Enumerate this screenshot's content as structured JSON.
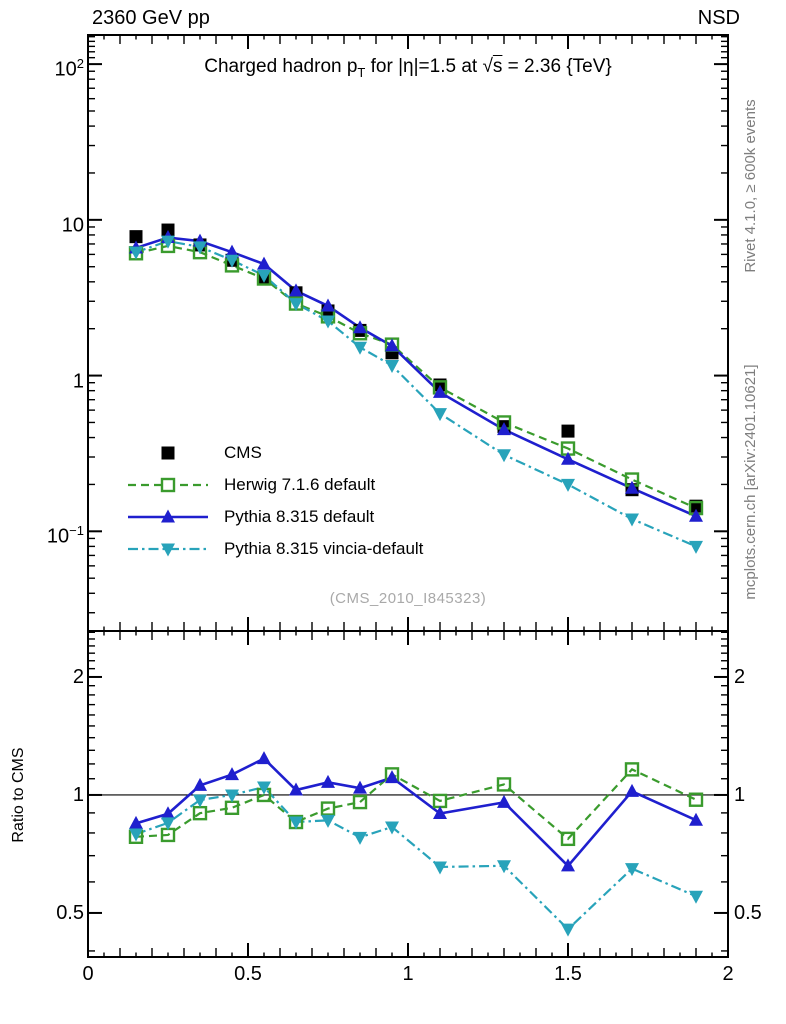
{
  "header": {
    "left": "2360 GeV pp",
    "right": "NSD"
  },
  "side_notes": {
    "top": "Rivet 4.1.0, ≥ 600k events",
    "bottom": "mcplots.cern.ch [arXiv:2401.10621]"
  },
  "watermark": "(CMS_2010_I845323)",
  "title_parts": {
    "prefix": "Charged hadron p",
    "sub": "T",
    "mid": " for |η|=1.5 at ",
    "radical": "√",
    "radicand": "s",
    "suffix": " = 2.36 {TeV}"
  },
  "ratio_ylabel": "Ratio to CMS",
  "chart_data": {
    "type": "line",
    "x": [
      0.15,
      0.25,
      0.35,
      0.45,
      0.55,
      0.65,
      0.75,
      0.85,
      0.95,
      1.1,
      1.3,
      1.5,
      1.7,
      1.9
    ],
    "series": [
      {
        "name": "CMS",
        "color": "#000000",
        "marker": "square-filled",
        "line_style": "none",
        "values": [
          7.8,
          8.6,
          6.9,
          5.5,
          4.2,
          3.4,
          2.6,
          1.95,
          1.4,
          0.87,
          0.47,
          0.44,
          0.185,
          0.145
        ]
      },
      {
        "name": "Herwig 7.1.6 default",
        "color": "#3a9b2d",
        "marker": "square-open",
        "line_style": "dashed",
        "values": [
          6.1,
          6.8,
          6.2,
          5.1,
          4.2,
          2.9,
          2.4,
          1.87,
          1.58,
          0.84,
          0.5,
          0.34,
          0.215,
          0.141
        ]
      },
      {
        "name": "Pythia 8.315 default",
        "color": "#1f1fce",
        "marker": "triangle-up-filled",
        "line_style": "solid",
        "values": [
          6.6,
          7.7,
          7.3,
          6.2,
          5.2,
          3.5,
          2.8,
          2.03,
          1.55,
          0.78,
          0.45,
          0.29,
          0.189,
          0.125
        ]
      },
      {
        "name": "Pythia 8.315 vincia-default",
        "color": "#28a3ba",
        "marker": "triangle-down-filled",
        "line_style": "dashdot",
        "values": [
          6.2,
          7.3,
          6.7,
          5.5,
          4.4,
          2.9,
          2.24,
          1.52,
          1.16,
          0.57,
          0.31,
          0.2,
          0.12,
          0.08
        ]
      }
    ],
    "xlim": [
      0,
      2
    ],
    "x_ticks": [
      0,
      0.5,
      1,
      1.5,
      2
    ],
    "x_tick_labels": [
      "0",
      "0.5",
      "1",
      "1.5",
      "2"
    ],
    "main_axis": {
      "scale": "log",
      "ylim": [
        0.0229,
        153.8
      ],
      "tick_values": [
        100,
        10,
        1,
        0.1
      ],
      "tick_labels": [
        {
          "base": "10",
          "sup": "2"
        },
        {
          "base": "10",
          "sup": ""
        },
        {
          "base": "1",
          "sup": ""
        },
        {
          "base": "10",
          "sup": "−1"
        }
      ]
    },
    "ratio_axis": {
      "scale": "log",
      "ylim": [
        0.386,
        2.62
      ],
      "tick_values": [
        2,
        1,
        0.5
      ],
      "tick_labels": [
        "2",
        "1",
        "0.5"
      ],
      "reference": 1
    },
    "legend_position": "center-left",
    "grid": false
  }
}
